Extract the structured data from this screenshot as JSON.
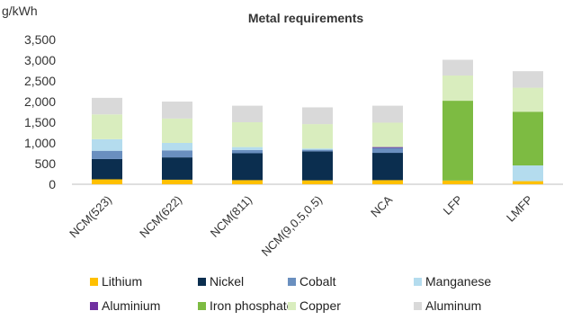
{
  "chart_data": {
    "type": "bar",
    "stacked": true,
    "title": "Metal requirements",
    "ylabel": "g/kWh",
    "xlabel": "",
    "ylim": [
      0,
      3500
    ],
    "yticks": [
      0,
      500,
      1000,
      1500,
      2000,
      2500,
      3000,
      3500
    ],
    "ytick_labels": [
      "0",
      "500",
      "1,000",
      "1,500",
      "2,000",
      "2,500",
      "3,000",
      "3,500"
    ],
    "grid": false,
    "legend_position": "bottom",
    "categories": [
      "NCM(523)",
      "NCM(622)",
      "NCM(811)",
      "NCM(9,0.5,0.5)",
      "NCA",
      "LFP",
      "LMFP"
    ],
    "series": [
      {
        "name": "Lithium",
        "color": "#FFC000",
        "values": [
          120,
          110,
          100,
          95,
          100,
          90,
          75
        ]
      },
      {
        "name": "Nickel",
        "color": "#0B2E4F",
        "values": [
          490,
          540,
          650,
          700,
          660,
          0,
          0
        ]
      },
      {
        "name": "Cobalt",
        "color": "#6A8FBF",
        "values": [
          200,
          170,
          80,
          40,
          120,
          0,
          0
        ]
      },
      {
        "name": "Manganese",
        "color": "#B4DCEE",
        "values": [
          280,
          180,
          70,
          30,
          0,
          0,
          380
        ]
      },
      {
        "name": "Aluminium",
        "color": "#7030A0",
        "values": [
          0,
          0,
          0,
          0,
          20,
          0,
          0
        ]
      },
      {
        "name": "Iron phosphate",
        "color": "#7DBB42",
        "values": [
          0,
          0,
          0,
          0,
          0,
          1930,
          1300
        ]
      },
      {
        "name": "Copper",
        "color": "#D9EDBE",
        "values": [
          600,
          590,
          600,
          590,
          590,
          610,
          580
        ]
      },
      {
        "name": "Aluminum",
        "color": "#D9D9D9",
        "values": [
          400,
          410,
          400,
          405,
          410,
          380,
          400
        ]
      }
    ]
  }
}
